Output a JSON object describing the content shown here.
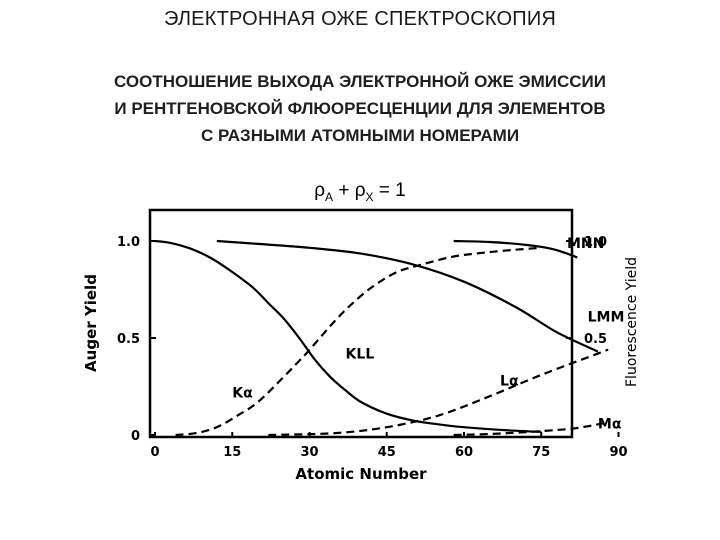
{
  "slide": {
    "title": "ЭЛЕКТРОННАЯ ОЖЕ СПЕКТРОСКОПИЯ",
    "subtitle_lines": [
      "СООТНОШЕНИЕ ВЫХОДА ЭЛЕКТРОННОЙ ОЖЕ ЭМИССИИ",
      "И РЕНТГЕНОВСКОЙ ФЛЮОРЕСЦЕНЦИИ ДЛЯ ЭЛЕМЕНТОВ",
      "С РАЗНЫМИ АТОМНЫМИ НОМЕРАМИ"
    ],
    "formula": {
      "rho": "ρ",
      "sub_a": "A",
      "plus": " + ",
      "sub_x": "X",
      "rhs": " = 1"
    }
  },
  "chart_data": {
    "type": "line",
    "xlabel": "Atomic Number",
    "ylabel_left": "Auger Yield",
    "ylabel_right": "Fluorescence Yield",
    "xlim": [
      0,
      100
    ],
    "ylim": [
      0,
      1.05
    ],
    "x_ticks": [
      0,
      15,
      30,
      45,
      60,
      75,
      90
    ],
    "y_ticks_left": [
      {
        "v": 0,
        "label": "0"
      },
      {
        "v": 0.5,
        "label": "0.5"
      },
      {
        "v": 1.0,
        "label": "1.0"
      }
    ],
    "y_ticks_right": [
      {
        "v": 0.5,
        "label": "0.5"
      },
      {
        "v": 1.0,
        "label": "1.0"
      }
    ],
    "series": [
      {
        "name": "KLL",
        "style": "solid",
        "x": [
          0,
          3,
          7,
          11,
          15,
          19,
          22,
          25,
          28,
          31,
          34,
          37,
          40,
          45,
          50,
          55,
          60,
          65,
          70,
          75
        ],
        "y": [
          1.0,
          0.99,
          0.96,
          0.91,
          0.84,
          0.76,
          0.68,
          0.6,
          0.5,
          0.39,
          0.3,
          0.23,
          0.17,
          0.11,
          0.075,
          0.055,
          0.04,
          0.03,
          0.022,
          0.016
        ]
      },
      {
        "name": "Kα",
        "style": "dashed",
        "x": [
          4,
          8,
          12,
          16,
          20,
          25,
          29,
          32,
          35,
          38,
          42,
          47,
          52,
          58,
          64,
          70,
          75
        ],
        "y": [
          0.0,
          0.01,
          0.04,
          0.1,
          0.17,
          0.3,
          0.41,
          0.5,
          0.59,
          0.67,
          0.76,
          0.84,
          0.88,
          0.92,
          0.94,
          0.955,
          0.965
        ]
      },
      {
        "name": "LMM",
        "style": "solid",
        "x": [
          12,
          20,
          30,
          40,
          50,
          60,
          70,
          78,
          86
        ],
        "y": [
          1.0,
          0.985,
          0.965,
          0.935,
          0.88,
          0.79,
          0.66,
          0.53,
          0.43
        ]
      },
      {
        "name": "Lα",
        "style": "dashed",
        "x": [
          22,
          35,
          45,
          55,
          65,
          75,
          85,
          88
        ],
        "y": [
          0.0,
          0.01,
          0.04,
          0.1,
          0.2,
          0.31,
          0.41,
          0.44
        ]
      },
      {
        "name": "MNN",
        "style": "solid",
        "x": [
          58,
          65,
          72,
          77,
          80,
          82
        ],
        "y": [
          1.0,
          0.995,
          0.98,
          0.96,
          0.935,
          0.915
        ]
      },
      {
        "name": "Mα",
        "style": "dashed",
        "x": [
          58,
          65,
          72,
          80,
          84,
          87
        ],
        "y": [
          0.0,
          0.005,
          0.015,
          0.03,
          0.045,
          0.06
        ]
      }
    ],
    "annotations": [
      {
        "text": "MNN",
        "x": 80,
        "y": 0.99
      },
      {
        "text": "LMM",
        "x": 84,
        "y": 0.61
      },
      {
        "text": "KLL",
        "x": 37,
        "y": 0.42
      },
      {
        "text": "Kα",
        "x": 15,
        "y": 0.22
      },
      {
        "text": "Lα",
        "x": 67,
        "y": 0.28
      },
      {
        "text": "Mα",
        "x": 86,
        "y": 0.06
      }
    ],
    "grid": false,
    "colors": {
      "line": "#000000"
    }
  }
}
